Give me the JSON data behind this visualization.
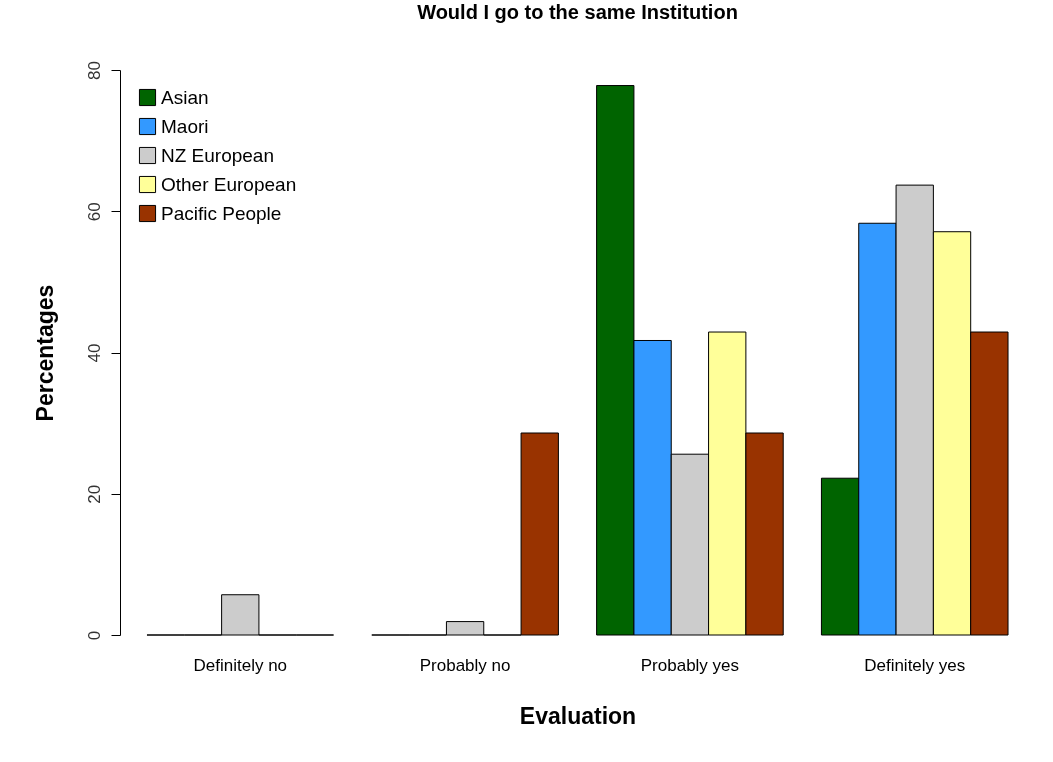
{
  "chart_data": {
    "type": "bar",
    "title": "Would I go to the same Institution",
    "xlabel": "Evaluation",
    "ylabel": "Percentages",
    "categories": [
      "Definitely no",
      "Probably no",
      "Probably yes",
      "Definitely yes"
    ],
    "series": [
      {
        "name": "Asian",
        "color": "#006400",
        "values": [
          0,
          0,
          77.8,
          22.2
        ]
      },
      {
        "name": "Maori",
        "color": "#3399ff",
        "values": [
          0,
          0,
          41.7,
          58.3
        ]
      },
      {
        "name": "NZ European",
        "color": "#cccccc",
        "values": [
          5.7,
          1.9,
          25.6,
          63.7
        ]
      },
      {
        "name": "Other European",
        "color": "#ffff99",
        "values": [
          0,
          0,
          42.9,
          57.1
        ]
      },
      {
        "name": "Pacific People",
        "color": "#993300",
        "values": [
          0,
          28.6,
          28.6,
          42.9
        ]
      }
    ],
    "ylim": [
      0,
      80
    ],
    "yticks": [
      0,
      20,
      40,
      60,
      80
    ],
    "grid": false,
    "legend": "top left"
  }
}
